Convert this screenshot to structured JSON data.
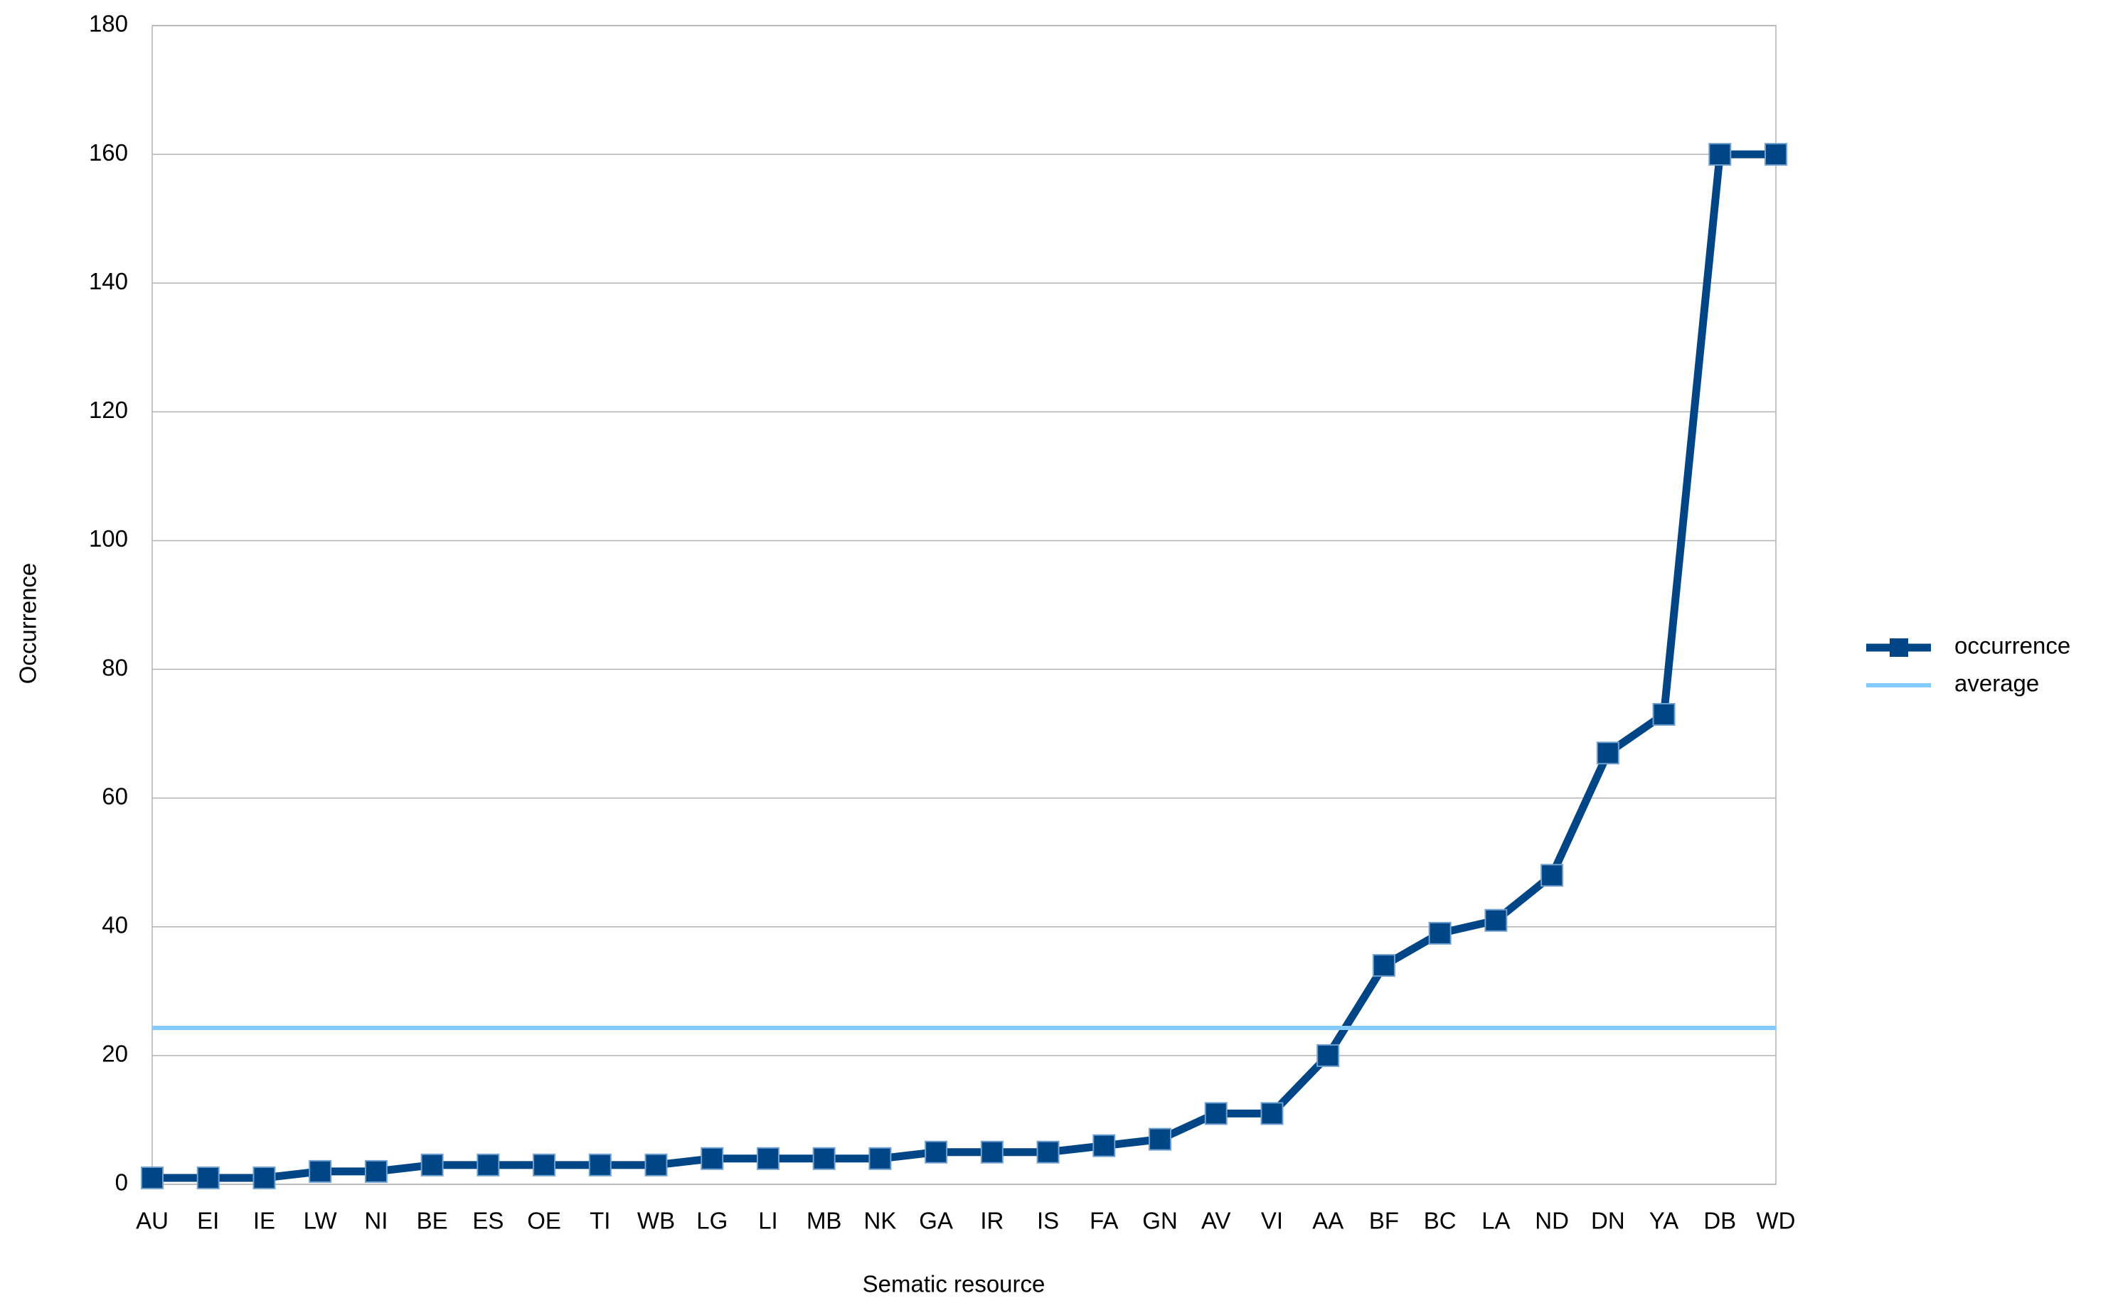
{
  "chart_data": {
    "type": "line",
    "x_label": "Sematic resource",
    "y_label": "Occurrence",
    "categories": [
      "AU",
      "EI",
      "IE",
      "LW",
      "NI",
      "BE",
      "ES",
      "OE",
      "TI",
      "WB",
      "LG",
      "LI",
      "MB",
      "NK",
      "GA",
      "IR",
      "IS",
      "FA",
      "GN",
      "AV",
      "VI",
      "AA",
      "BF",
      "BC",
      "LA",
      "ND",
      "DN",
      "YA",
      "DB",
      "WD"
    ],
    "series": [
      {
        "name": "occurrence",
        "color": "#004586",
        "marker": "square",
        "values": [
          1,
          1,
          1,
          2,
          2,
          3,
          3,
          3,
          3,
          3,
          4,
          4,
          4,
          4,
          5,
          5,
          5,
          6,
          7,
          11,
          11,
          20,
          34,
          39,
          41,
          48,
          67,
          73,
          160,
          160
        ]
      },
      {
        "name": "average",
        "color": "#83caff",
        "marker": "none",
        "values": [
          24.3,
          24.3,
          24.3,
          24.3,
          24.3,
          24.3,
          24.3,
          24.3,
          24.3,
          24.3,
          24.3,
          24.3,
          24.3,
          24.3,
          24.3,
          24.3,
          24.3,
          24.3,
          24.3,
          24.3,
          24.3,
          24.3,
          24.3,
          24.3,
          24.3,
          24.3,
          24.3,
          24.3,
          24.3,
          24.3
        ]
      }
    ],
    "ylim": [
      0,
      180
    ],
    "yticks": [
      0,
      20,
      40,
      60,
      80,
      100,
      120,
      140,
      160,
      180
    ],
    "grid": true,
    "legend": "right"
  }
}
